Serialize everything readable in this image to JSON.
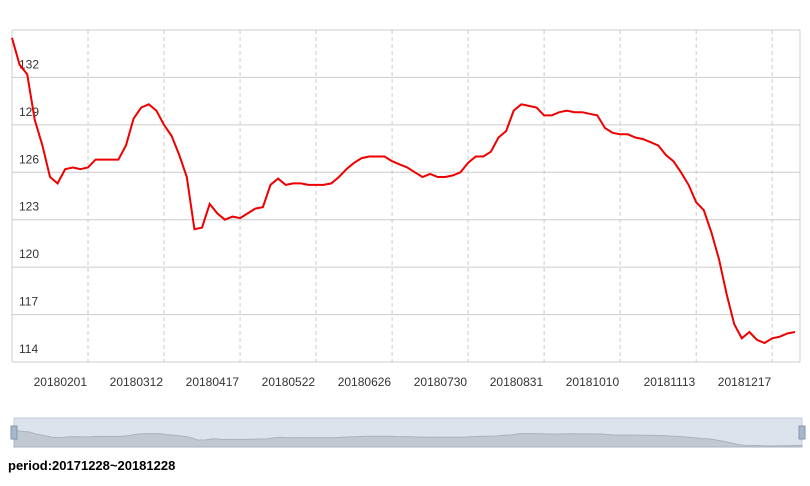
{
  "chart_data": {
    "type": "line",
    "categories": [
      null,
      null,
      null,
      null,
      null,
      null,
      null,
      null,
      null,
      null,
      "20180201",
      null,
      null,
      null,
      null,
      null,
      null,
      null,
      null,
      null,
      "20180312",
      null,
      null,
      null,
      null,
      null,
      null,
      null,
      null,
      null,
      "20180417",
      null,
      null,
      null,
      null,
      null,
      null,
      null,
      null,
      null,
      "20180522",
      null,
      null,
      null,
      null,
      null,
      null,
      null,
      null,
      null,
      "20180626",
      null,
      null,
      null,
      null,
      null,
      null,
      null,
      null,
      null,
      "20180730",
      null,
      null,
      null,
      null,
      null,
      null,
      null,
      null,
      null,
      "20180831",
      null,
      null,
      null,
      null,
      null,
      null,
      null,
      null,
      null,
      "20181010",
      null,
      null,
      null,
      null,
      null,
      null,
      null,
      null,
      null,
      "20181113",
      null,
      null,
      null,
      null,
      null,
      null,
      null,
      null,
      null,
      "20181217",
      null,
      null,
      null
    ],
    "series": [
      {
        "color": "#ee0000",
        "values": [
          134.5,
          132.8,
          132.2,
          129.3,
          127.7,
          125.7,
          125.3,
          126.2,
          126.3,
          126.2,
          126.3,
          126.8,
          126.8,
          126.8,
          126.8,
          127.7,
          129.4,
          130.1,
          130.3,
          129.9,
          129.0,
          128.3,
          127.1,
          125.7,
          122.4,
          122.5,
          124.0,
          123.4,
          123.0,
          123.2,
          123.1,
          123.4,
          123.7,
          123.8,
          125.2,
          125.6,
          125.2,
          125.3,
          125.3,
          125.2,
          125.2,
          125.2,
          125.3,
          125.7,
          126.2,
          126.6,
          126.9,
          127.0,
          127.0,
          127.0,
          126.7,
          126.5,
          126.3,
          126.0,
          125.7,
          125.9,
          125.7,
          125.7,
          125.8,
          126.0,
          126.6,
          127.0,
          127.0,
          127.3,
          128.2,
          128.6,
          129.9,
          130.3,
          130.2,
          130.1,
          129.6,
          129.6,
          129.8,
          129.9,
          129.8,
          129.8,
          129.7,
          129.6,
          128.8,
          128.5,
          128.4,
          128.4,
          128.2,
          128.1,
          127.9,
          127.7,
          127.1,
          126.7,
          126.0,
          125.2,
          124.1,
          123.6,
          122.2,
          120.5,
          118.3,
          116.4,
          115.5,
          115.9,
          115.4,
          115.2,
          115.5,
          115.6,
          115.8,
          115.9
        ]
      }
    ],
    "ylim": [
      114,
      135
    ],
    "yticks": [
      114,
      117,
      120,
      123,
      126,
      129,
      132
    ],
    "grid": true
  },
  "footer": "period:20171228~20181228"
}
